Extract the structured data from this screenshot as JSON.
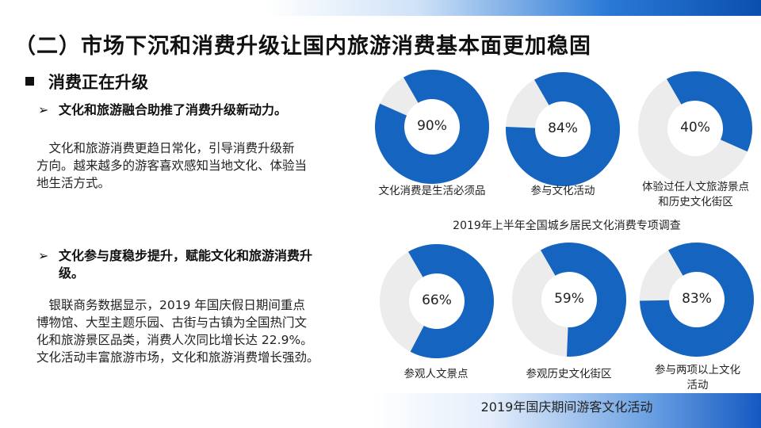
{
  "title": "（二）市场下沉和消费升级让国内旅游消费基本面更加稳固",
  "section": "消费正在升级",
  "bullets": [
    {
      "heading": "文化和旅游融合助推了消费升级新动力。",
      "para_lines": [
        "　文化和旅游消费更趋日常化，引导消费升级新",
        "方向。越来越多的游客喜欢感知当地文化、体验当",
        "地生活方式。"
      ]
    },
    {
      "heading_lines": [
        "文化参与度稳步提升，赋能文化和旅游消费升",
        "级。"
      ],
      "para_lines": [
        "　银联商务数据显示，2019 年国庆假日期间重点",
        "博物馆、大型主题乐园、古街与古镇为全国热门文",
        "化和旅游景区品类，消费人次同比增长达 22.9%。",
        "文化活动丰富旅游市场，文化和旅游消费增长强劲。"
      ]
    }
  ],
  "colors": {
    "fill": "#1565c0",
    "track": "#ececec"
  },
  "chart_data": [
    {
      "type": "pie",
      "subtype": "donut",
      "title": "2019年上半年全国城乡居民文化消费专项调查",
      "items": [
        {
          "label_lines": [
            "文化消费是生活必须品"
          ],
          "value": 90,
          "value_label": "90%"
        },
        {
          "label_lines": [
            "参与文化活动"
          ],
          "value": 84,
          "value_label": "84%"
        },
        {
          "label_lines": [
            "体验过任人文旅游景点",
            "和历史文化街区"
          ],
          "value": 40,
          "value_label": "40%"
        }
      ]
    },
    {
      "type": "pie",
      "subtype": "donut",
      "title": "2019年国庆期间游客文化活动",
      "items": [
        {
          "label_lines": [
            "参观人文景点"
          ],
          "value": 66,
          "value_label": "66%"
        },
        {
          "label_lines": [
            "参观历史文化街区"
          ],
          "value": 59,
          "value_label": "59%"
        },
        {
          "label_lines": [
            "参与两项以上文化",
            "活动"
          ],
          "value": 83,
          "value_label": "83%"
        }
      ]
    }
  ]
}
